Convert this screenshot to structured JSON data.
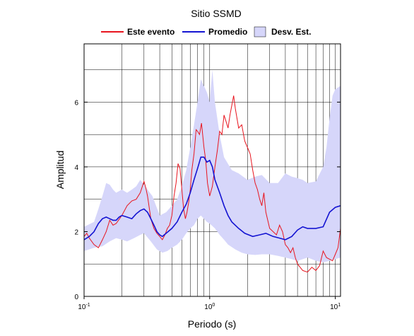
{
  "chart_data": {
    "type": "line",
    "title": "Sitio SSMD",
    "xlabel": "Periodo (s)",
    "ylabel": "Amplitud",
    "xscale": "log",
    "xlim": [
      0.1,
      11
    ],
    "ylim": [
      0,
      7.8
    ],
    "grid": true,
    "legend_position": "top",
    "x_ticks": [
      {
        "value": 0.1,
        "base": "10",
        "exp": "-1"
      },
      {
        "value": 1,
        "base": "10",
        "exp": "0"
      },
      {
        "value": 10,
        "base": "10",
        "exp": "1"
      }
    ],
    "y_ticks": [
      0,
      2,
      4,
      6
    ],
    "series": [
      {
        "name": "Este evento",
        "color": "#e8141e",
        "points": [
          [
            0.1,
            1.85
          ],
          [
            0.105,
            1.95
          ],
          [
            0.11,
            1.8
          ],
          [
            0.12,
            1.6
          ],
          [
            0.13,
            1.5
          ],
          [
            0.14,
            1.75
          ],
          [
            0.15,
            2.0
          ],
          [
            0.16,
            2.35
          ],
          [
            0.17,
            2.2
          ],
          [
            0.18,
            2.25
          ],
          [
            0.2,
            2.5
          ],
          [
            0.22,
            2.8
          ],
          [
            0.24,
            2.95
          ],
          [
            0.26,
            3.0
          ],
          [
            0.28,
            3.2
          ],
          [
            0.3,
            3.55
          ],
          [
            0.31,
            3.35
          ],
          [
            0.32,
            3.1
          ],
          [
            0.34,
            2.4
          ],
          [
            0.36,
            2.1
          ],
          [
            0.38,
            1.95
          ],
          [
            0.4,
            1.85
          ],
          [
            0.42,
            1.75
          ],
          [
            0.44,
            1.9
          ],
          [
            0.46,
            2.1
          ],
          [
            0.48,
            2.2
          ],
          [
            0.5,
            2.5
          ],
          [
            0.52,
            3.1
          ],
          [
            0.54,
            3.5
          ],
          [
            0.56,
            4.1
          ],
          [
            0.58,
            3.95
          ],
          [
            0.6,
            3.3
          ],
          [
            0.62,
            2.7
          ],
          [
            0.64,
            2.4
          ],
          [
            0.66,
            2.6
          ],
          [
            0.68,
            2.9
          ],
          [
            0.7,
            3.3
          ],
          [
            0.72,
            3.9
          ],
          [
            0.75,
            4.4
          ],
          [
            0.78,
            5.15
          ],
          [
            0.8,
            5.1
          ],
          [
            0.83,
            5.0
          ],
          [
            0.86,
            5.35
          ],
          [
            0.9,
            4.6
          ],
          [
            0.93,
            4.2
          ],
          [
            0.96,
            3.5
          ],
          [
            1.0,
            3.1
          ],
          [
            1.05,
            3.4
          ],
          [
            1.1,
            4.0
          ],
          [
            1.15,
            4.5
          ],
          [
            1.2,
            5.1
          ],
          [
            1.25,
            5.0
          ],
          [
            1.3,
            5.6
          ],
          [
            1.35,
            5.4
          ],
          [
            1.4,
            5.2
          ],
          [
            1.45,
            5.6
          ],
          [
            1.5,
            5.9
          ],
          [
            1.55,
            6.2
          ],
          [
            1.6,
            5.8
          ],
          [
            1.7,
            5.2
          ],
          [
            1.8,
            5.3
          ],
          [
            1.9,
            4.8
          ],
          [
            2.0,
            4.6
          ],
          [
            2.1,
            4.4
          ],
          [
            2.2,
            3.9
          ],
          [
            2.3,
            3.5
          ],
          [
            2.4,
            3.3
          ],
          [
            2.5,
            3.0
          ],
          [
            2.6,
            2.8
          ],
          [
            2.7,
            3.2
          ],
          [
            2.8,
            2.6
          ],
          [
            3.0,
            2.1
          ],
          [
            3.2,
            2.0
          ],
          [
            3.4,
            1.9
          ],
          [
            3.6,
            2.2
          ],
          [
            3.8,
            2.0
          ],
          [
            4.0,
            1.6
          ],
          [
            4.2,
            1.5
          ],
          [
            4.4,
            1.35
          ],
          [
            4.6,
            1.5
          ],
          [
            4.8,
            1.2
          ],
          [
            5.0,
            1.0
          ],
          [
            5.5,
            0.8
          ],
          [
            6.0,
            0.75
          ],
          [
            6.5,
            0.9
          ],
          [
            7.0,
            0.8
          ],
          [
            7.5,
            0.95
          ],
          [
            8.0,
            1.4
          ],
          [
            8.5,
            1.2
          ],
          [
            9.0,
            1.15
          ],
          [
            9.5,
            1.1
          ],
          [
            10.0,
            1.3
          ],
          [
            10.5,
            1.5
          ],
          [
            11.0,
            2.1
          ]
        ]
      },
      {
        "name": "Promedio",
        "color": "#1414d2",
        "points": [
          [
            0.1,
            1.75
          ],
          [
            0.11,
            1.85
          ],
          [
            0.12,
            2.0
          ],
          [
            0.13,
            2.25
          ],
          [
            0.14,
            2.4
          ],
          [
            0.15,
            2.45
          ],
          [
            0.16,
            2.4
          ],
          [
            0.17,
            2.35
          ],
          [
            0.18,
            2.35
          ],
          [
            0.19,
            2.45
          ],
          [
            0.2,
            2.5
          ],
          [
            0.22,
            2.45
          ],
          [
            0.24,
            2.4
          ],
          [
            0.26,
            2.55
          ],
          [
            0.28,
            2.65
          ],
          [
            0.3,
            2.7
          ],
          [
            0.32,
            2.6
          ],
          [
            0.34,
            2.4
          ],
          [
            0.36,
            2.2
          ],
          [
            0.38,
            2.0
          ],
          [
            0.4,
            1.9
          ],
          [
            0.42,
            1.85
          ],
          [
            0.45,
            1.95
          ],
          [
            0.5,
            2.1
          ],
          [
            0.55,
            2.3
          ],
          [
            0.6,
            2.6
          ],
          [
            0.65,
            2.85
          ],
          [
            0.7,
            3.2
          ],
          [
            0.75,
            3.6
          ],
          [
            0.8,
            3.95
          ],
          [
            0.85,
            4.3
          ],
          [
            0.9,
            4.3
          ],
          [
            0.95,
            4.15
          ],
          [
            1.0,
            4.2
          ],
          [
            1.05,
            4.0
          ],
          [
            1.1,
            3.6
          ],
          [
            1.2,
            3.2
          ],
          [
            1.3,
            2.8
          ],
          [
            1.4,
            2.5
          ],
          [
            1.5,
            2.3
          ],
          [
            1.7,
            2.1
          ],
          [
            1.9,
            1.95
          ],
          [
            2.2,
            1.85
          ],
          [
            2.5,
            1.9
          ],
          [
            2.8,
            1.95
          ],
          [
            3.2,
            1.85
          ],
          [
            3.6,
            1.8
          ],
          [
            4.0,
            1.75
          ],
          [
            4.5,
            1.85
          ],
          [
            5.0,
            2.05
          ],
          [
            5.5,
            2.15
          ],
          [
            6.0,
            2.1
          ],
          [
            7.0,
            2.1
          ],
          [
            8.0,
            2.15
          ],
          [
            9.0,
            2.6
          ],
          [
            10.0,
            2.75
          ],
          [
            11.0,
            2.8
          ]
        ]
      }
    ],
    "band": {
      "name": "Desv. Est.",
      "color": "#d6d6fa",
      "upper": [
        [
          0.1,
          2.15
        ],
        [
          0.12,
          2.3
        ],
        [
          0.13,
          2.7
        ],
        [
          0.14,
          3.1
        ],
        [
          0.15,
          3.5
        ],
        [
          0.16,
          3.45
        ],
        [
          0.17,
          3.3
        ],
        [
          0.18,
          3.2
        ],
        [
          0.2,
          3.3
        ],
        [
          0.22,
          3.2
        ],
        [
          0.24,
          3.3
        ],
        [
          0.26,
          3.4
        ],
        [
          0.28,
          3.6
        ],
        [
          0.3,
          3.45
        ],
        [
          0.32,
          3.3
        ],
        [
          0.35,
          3.1
        ],
        [
          0.4,
          2.5
        ],
        [
          0.45,
          2.6
        ],
        [
          0.5,
          2.8
        ],
        [
          0.55,
          3.0
        ],
        [
          0.6,
          3.4
        ],
        [
          0.65,
          3.9
        ],
        [
          0.7,
          4.6
        ],
        [
          0.75,
          5.3
        ],
        [
          0.8,
          6.0
        ],
        [
          0.85,
          6.7
        ],
        [
          0.9,
          6.5
        ],
        [
          0.95,
          6.3
        ],
        [
          1.0,
          6.0
        ],
        [
          1.05,
          7.0
        ],
        [
          1.1,
          6.0
        ],
        [
          1.2,
          5.0
        ],
        [
          1.3,
          4.3
        ],
        [
          1.5,
          3.9
        ],
        [
          1.7,
          3.8
        ],
        [
          2.0,
          3.6
        ],
        [
          2.3,
          3.7
        ],
        [
          2.6,
          3.75
        ],
        [
          3.0,
          3.5
        ],
        [
          3.5,
          3.5
        ],
        [
          4.0,
          3.8
        ],
        [
          4.5,
          3.7
        ],
        [
          5.0,
          3.65
        ],
        [
          5.5,
          3.6
        ],
        [
          6.0,
          3.5
        ],
        [
          7.0,
          3.55
        ],
        [
          8.0,
          4.0
        ],
        [
          8.5,
          4.6
        ],
        [
          9.0,
          5.5
        ],
        [
          9.5,
          6.2
        ],
        [
          10.0,
          6.4
        ],
        [
          11.0,
          6.5
        ]
      ],
      "lower": [
        [
          0.1,
          1.4
        ],
        [
          0.12,
          1.5
        ],
        [
          0.14,
          1.55
        ],
        [
          0.16,
          1.7
        ],
        [
          0.18,
          1.8
        ],
        [
          0.2,
          1.75
        ],
        [
          0.22,
          1.7
        ],
        [
          0.25,
          1.8
        ],
        [
          0.28,
          1.9
        ],
        [
          0.3,
          1.95
        ],
        [
          0.34,
          1.7
        ],
        [
          0.38,
          1.45
        ],
        [
          0.42,
          1.35
        ],
        [
          0.46,
          1.4
        ],
        [
          0.5,
          1.5
        ],
        [
          0.55,
          1.6
        ],
        [
          0.6,
          1.75
        ],
        [
          0.65,
          1.95
        ],
        [
          0.7,
          2.1
        ],
        [
          0.75,
          2.2
        ],
        [
          0.8,
          2.4
        ],
        [
          0.85,
          2.5
        ],
        [
          0.9,
          2.4
        ],
        [
          0.95,
          2.3
        ],
        [
          1.0,
          2.25
        ],
        [
          1.1,
          2.1
        ],
        [
          1.2,
          1.9
        ],
        [
          1.3,
          1.75
        ],
        [
          1.4,
          1.6
        ],
        [
          1.6,
          1.45
        ],
        [
          1.8,
          1.35
        ],
        [
          2.0,
          1.3
        ],
        [
          2.3,
          1.28
        ],
        [
          2.6,
          1.3
        ],
        [
          3.0,
          1.3
        ],
        [
          3.5,
          1.25
        ],
        [
          4.0,
          1.2
        ],
        [
          4.5,
          1.15
        ],
        [
          5.0,
          1.1
        ],
        [
          5.5,
          1.15
        ],
        [
          6.0,
          1.2
        ],
        [
          6.5,
          1.15
        ],
        [
          7.0,
          1.1
        ],
        [
          8.0,
          1.05
        ],
        [
          9.0,
          1.1
        ],
        [
          10.0,
          1.15
        ],
        [
          11.0,
          1.2
        ]
      ]
    }
  }
}
